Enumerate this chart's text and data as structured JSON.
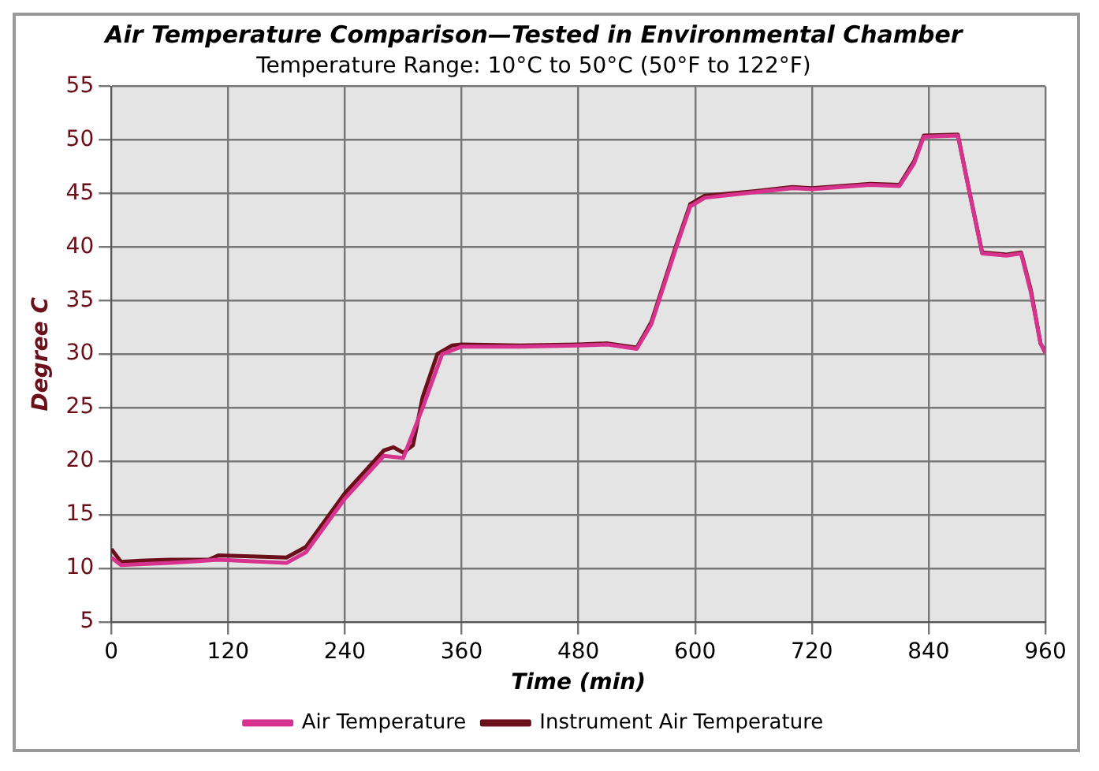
{
  "chart_data": {
    "type": "line",
    "title": "Air Temperature Comparison—Tested in Environmental Chamber",
    "subtitle": "Temperature Range: 10°C to 50°C (50°F to 122°F)",
    "xlabel": "Time (min)",
    "ylabel": "Degree C",
    "xlim": [
      0,
      960
    ],
    "xticks": [
      0,
      120,
      240,
      360,
      480,
      600,
      720,
      840,
      960
    ],
    "ylim": [
      5,
      55
    ],
    "yticks": [
      5,
      10,
      15,
      20,
      25,
      30,
      35,
      40,
      45,
      50,
      55
    ],
    "grid": true,
    "legend": "bottom",
    "marker": "none",
    "line_style": "solid",
    "series": [
      {
        "name": "Air Temperature",
        "color": "#d6338f",
        "x": [
          0,
          10,
          60,
          110,
          180,
          200,
          240,
          280,
          300,
          320,
          340,
          360,
          420,
          480,
          510,
          540,
          555,
          580,
          595,
          610,
          660,
          700,
          720,
          780,
          810,
          825,
          835,
          870,
          880,
          895,
          920,
          935,
          945,
          955,
          960
        ],
        "values": [
          11.0,
          10.3,
          10.5,
          10.8,
          10.5,
          11.5,
          16.5,
          20.5,
          20.3,
          25,
          30,
          30.7,
          30.7,
          30.8,
          30.9,
          30.5,
          32.8,
          39.8,
          43.8,
          44.6,
          45.1,
          45.5,
          45.4,
          45.8,
          45.7,
          47.8,
          50.3,
          50.4,
          46,
          39.4,
          39.2,
          39.4,
          35.8,
          31,
          30.1
        ]
      },
      {
        "name": "Instrument Air Temperature",
        "color": "#6b0f1a",
        "x": [
          0,
          10,
          30,
          60,
          100,
          110,
          150,
          180,
          200,
          220,
          240,
          260,
          280,
          290,
          300,
          310,
          320,
          335,
          350,
          360,
          420,
          480,
          510,
          540,
          555,
          580,
          595,
          610,
          660,
          700,
          720,
          780,
          810,
          825,
          835,
          870,
          880,
          895,
          920,
          935,
          945,
          955,
          960
        ],
        "values": [
          11.8,
          10.6,
          10.7,
          10.8,
          10.8,
          11.2,
          11.1,
          11.0,
          12,
          14.5,
          17,
          19,
          21,
          21.3,
          20.8,
          21.5,
          26,
          30,
          30.8,
          30.9,
          30.8,
          30.9,
          31.0,
          30.6,
          33,
          40,
          44,
          44.8,
          45.2,
          45.6,
          45.5,
          45.9,
          45.8,
          48,
          50.4,
          50.5,
          46,
          39.5,
          39.3,
          39.5,
          36,
          31,
          30.2
        ]
      }
    ]
  }
}
